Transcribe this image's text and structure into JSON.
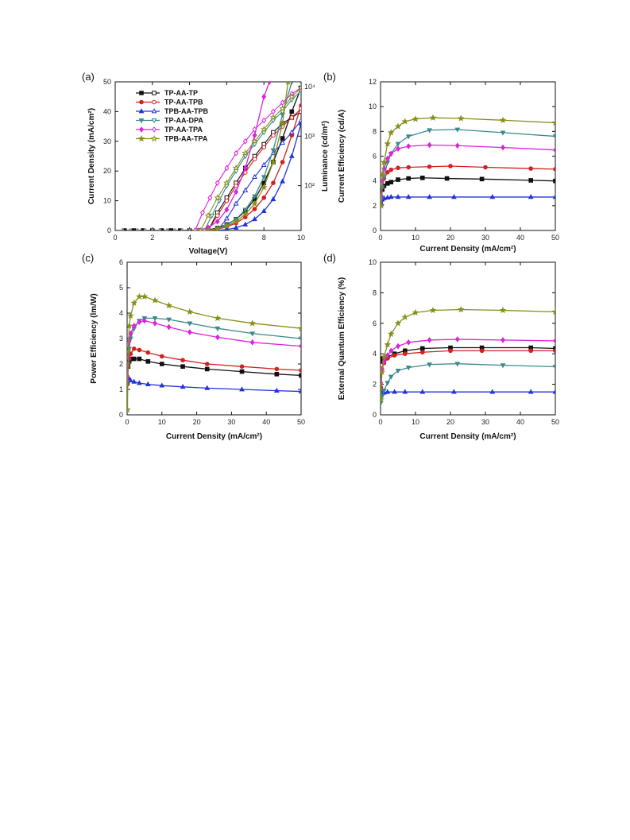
{
  "series_colors": {
    "TP-AA-TP": "#111111",
    "TP-AA-TPB": "#d42020",
    "TPB-AA-TPB": "#2233dd",
    "TP-AA-DPA": "#3a8a8a",
    "TP-AA-TPA": "#dd22dd",
    "TPB-AA-TPA": "#888f1a"
  },
  "chart_data": [
    {
      "id": "a",
      "panel_label": "(a)",
      "type": "line",
      "xlabel": "Voltage(V)",
      "ylabel": "Current Density (mA/cm²)",
      "ylabel_right": "Luminance (cd/m²)",
      "xlim": [
        0,
        10
      ],
      "ylim": [
        0,
        50
      ],
      "xticks": [
        0,
        2,
        4,
        6,
        8,
        10
      ],
      "yticks": [
        0,
        10,
        20,
        30,
        40,
        50
      ],
      "y2_log": true,
      "y2_ticks": [
        "10²",
        "10³",
        "10⁴"
      ],
      "legend": [
        "TP-AA-TP",
        "TP-AA-TPB",
        "TPB-AA-TPB",
        "TP-AA-DPA",
        "TP-AA-TPA",
        "TPB-AA-TPA"
      ],
      "legend_position": "top-left",
      "series": [
        {
          "name": "TP-AA-TP",
          "marker": "square",
          "x": [
            0.5,
            1,
            1.5,
            2,
            2.5,
            3,
            3.5,
            4,
            4.5,
            5,
            5.5,
            6,
            6.5,
            7,
            7.5,
            8,
            8.5,
            9,
            9.5,
            10
          ],
          "y": [
            0,
            0,
            0,
            0,
            0,
            0,
            0,
            0,
            0,
            0.2,
            0.8,
            2,
            3.8,
            6.5,
            10.5,
            16,
            23,
            31,
            40,
            48
          ],
          "lum_x": [
            5,
            5.5,
            6,
            6.5,
            7,
            7.5,
            8,
            8.5,
            9,
            9.5,
            10
          ],
          "lum_y": [
            0,
            6,
            11,
            16,
            21,
            25,
            29,
            33,
            36,
            38,
            40
          ]
        },
        {
          "name": "TP-AA-TPB",
          "marker": "circle",
          "x": [
            5,
            5.5,
            6,
            6.5,
            7,
            7.5,
            8,
            8.5,
            9,
            9.5,
            10
          ],
          "y": [
            0,
            0.4,
            1.2,
            2.5,
            4.5,
            7.2,
            11,
            16,
            23,
            32,
            42
          ],
          "lum_x": [
            5,
            5.5,
            6,
            6.5,
            7,
            7.5,
            8,
            8.5,
            9,
            9.5,
            10
          ],
          "lum_y": [
            0,
            5,
            10,
            15,
            19.5,
            24,
            28,
            32,
            35,
            38,
            41
          ]
        },
        {
          "name": "TPB-AA-TPB",
          "marker": "triangle",
          "x": [
            5.5,
            6,
            6.5,
            7,
            7.5,
            8,
            8.5,
            9,
            9.5,
            10
          ],
          "y": [
            0,
            0.3,
            0.9,
            2,
            3.8,
            6.5,
            10.5,
            16.5,
            25,
            36
          ],
          "lum_x": [
            5.5,
            6,
            6.5,
            7,
            7.5,
            8,
            8.5,
            9,
            9.5,
            10
          ],
          "lum_y": [
            0,
            4,
            9,
            13.5,
            18,
            22,
            26,
            29.5,
            33,
            37
          ]
        },
        {
          "name": "TP-AA-DPA",
          "marker": "triangle-down",
          "x": [
            5,
            5.5,
            6,
            6.5,
            7,
            7.5,
            8,
            8.5,
            9,
            9.5,
            10
          ],
          "y": [
            0,
            0.6,
            1.8,
            3.8,
            7,
            11.5,
            18,
            27,
            39,
            50,
            50
          ],
          "lum_x": [
            4.8,
            5.2,
            5.6,
            6,
            6.5,
            7,
            7.5,
            8,
            8.5,
            9,
            9.5,
            10
          ],
          "lum_y": [
            0,
            5,
            10,
            15,
            20,
            25,
            29,
            33,
            37,
            40,
            44,
            47
          ]
        },
        {
          "name": "TP-AA-TPA",
          "marker": "diamond",
          "x": [
            4.5,
            5,
            5.5,
            6,
            6.5,
            7,
            7.5,
            8,
            8.3
          ],
          "y": [
            0,
            1,
            3,
            7,
            13,
            21,
            32,
            45,
            50
          ],
          "lum_x": [
            4.3,
            4.7,
            5.1,
            5.5,
            6,
            6.5,
            7,
            7.5,
            8,
            8.5,
            9,
            9.5,
            10
          ],
          "lum_y": [
            0,
            6,
            11,
            16,
            21,
            26,
            30,
            34,
            37,
            40,
            43,
            46,
            48
          ]
        },
        {
          "name": "TPB-AA-TPA",
          "marker": "star",
          "x": [
            5,
            5.5,
            6,
            6.5,
            7,
            7.5,
            8,
            8.5,
            9,
            9.3
          ],
          "y": [
            0,
            0.5,
            1.5,
            3,
            5.5,
            9,
            14.5,
            23,
            36,
            50
          ],
          "lum_x": [
            4.6,
            5,
            5.5,
            6,
            6.5,
            7,
            7.5,
            8,
            8.5,
            9,
            9.5,
            10
          ],
          "lum_y": [
            0,
            5,
            11,
            16,
            21,
            26,
            30,
            34,
            38,
            41,
            45,
            48
          ]
        }
      ]
    },
    {
      "id": "b",
      "panel_label": "(b)",
      "type": "line",
      "xlabel": "Current Density (mA/cm²)",
      "ylabel": "Current Efficiency (cd/A)",
      "xlim": [
        0,
        50
      ],
      "ylim": [
        0,
        12
      ],
      "xticks": [
        0,
        10,
        20,
        30,
        40,
        50
      ],
      "yticks": [
        0,
        2,
        4,
        6,
        8,
        10,
        12
      ],
      "series": [
        {
          "name": "TP-AA-TP",
          "marker": "square",
          "x": [
            0.2,
            0.5,
            1,
            2,
            3,
            5,
            8,
            12,
            19,
            29,
            43,
            50
          ],
          "y": [
            2.5,
            3.3,
            3.6,
            3.8,
            3.9,
            4.1,
            4.2,
            4.25,
            4.2,
            4.15,
            4.05,
            4.0
          ]
        },
        {
          "name": "TP-AA-TPB",
          "marker": "circle",
          "x": [
            0.2,
            0.5,
            1,
            2,
            3,
            5,
            8,
            14,
            20,
            30,
            43,
            50
          ],
          "y": [
            2.4,
            3.5,
            4.2,
            4.7,
            4.9,
            5.05,
            5.1,
            5.15,
            5.2,
            5.1,
            5.0,
            4.95
          ]
        },
        {
          "name": "TPB-AA-TPB",
          "marker": "triangle",
          "x": [
            0.2,
            0.5,
            1,
            2,
            3,
            5,
            8,
            14,
            21,
            32,
            43,
            50
          ],
          "y": [
            2.2,
            2.5,
            2.6,
            2.65,
            2.7,
            2.7,
            2.7,
            2.7,
            2.7,
            2.7,
            2.7,
            2.7
          ]
        },
        {
          "name": "TP-AA-DPA",
          "marker": "triangle-down",
          "x": [
            0.2,
            0.5,
            1,
            2,
            3,
            5,
            8,
            14,
            22,
            35,
            50
          ],
          "y": [
            2.5,
            3.5,
            4.3,
            5.5,
            6.2,
            7.0,
            7.6,
            8.1,
            8.15,
            7.9,
            7.6
          ]
        },
        {
          "name": "TP-AA-TPA",
          "marker": "diamond",
          "x": [
            0.2,
            0.5,
            1,
            2,
            3,
            5,
            8,
            14,
            22,
            35,
            50
          ],
          "y": [
            2.8,
            4.0,
            5.0,
            5.8,
            6.2,
            6.6,
            6.8,
            6.9,
            6.85,
            6.7,
            6.5
          ]
        },
        {
          "name": "TPB-AA-TPA",
          "marker": "star",
          "x": [
            0.2,
            0.5,
            1,
            2,
            3,
            5,
            7,
            10,
            15,
            23,
            35,
            50
          ],
          "y": [
            2.0,
            4.5,
            5.5,
            7.0,
            7.9,
            8.4,
            8.8,
            9.0,
            9.1,
            9.05,
            8.9,
            8.7
          ]
        }
      ]
    },
    {
      "id": "c",
      "panel_label": "(c)",
      "type": "line",
      "xlabel": "Current Density (mA/cm²)",
      "ylabel": "Power Efficiency (lm/W)",
      "xlim": [
        0,
        50
      ],
      "ylim": [
        0,
        6
      ],
      "xticks": [
        0,
        10,
        20,
        30,
        40,
        50
      ],
      "yticks": [
        0,
        1,
        2,
        3,
        4,
        5,
        6
      ],
      "series": [
        {
          "name": "TP-AA-TP",
          "marker": "square",
          "x": [
            0.1,
            0.3,
            0.6,
            1,
            2,
            3.5,
            6,
            10,
            16,
            23,
            33,
            43,
            50
          ],
          "y": [
            1.3,
            1.9,
            2.1,
            2.2,
            2.2,
            2.2,
            2.1,
            2.0,
            1.9,
            1.8,
            1.7,
            1.6,
            1.55
          ]
        },
        {
          "name": "TP-AA-TPB",
          "marker": "circle",
          "x": [
            0.1,
            0.3,
            0.6,
            1,
            2,
            3.5,
            6,
            10,
            16,
            23,
            33,
            43,
            50
          ],
          "y": [
            1.2,
            1.9,
            2.2,
            2.4,
            2.6,
            2.55,
            2.45,
            2.3,
            2.15,
            2.0,
            1.9,
            1.8,
            1.75
          ]
        },
        {
          "name": "TPB-AA-TPB",
          "marker": "triangle",
          "x": [
            0.1,
            0.3,
            0.6,
            1,
            2,
            3.5,
            6,
            10,
            16,
            23,
            33,
            43,
            50
          ],
          "y": [
            1.5,
            1.5,
            1.4,
            1.35,
            1.3,
            1.25,
            1.2,
            1.15,
            1.1,
            1.05,
            1.0,
            0.95,
            0.92
          ]
        },
        {
          "name": "TP-AA-DPA",
          "marker": "triangle-down",
          "x": [
            0.1,
            0.3,
            0.6,
            1,
            2,
            3.5,
            5,
            8,
            12,
            18,
            26,
            36,
            50
          ],
          "y": [
            1.3,
            2.0,
            2.6,
            3.0,
            3.4,
            3.7,
            3.8,
            3.8,
            3.75,
            3.6,
            3.4,
            3.2,
            3.0
          ]
        },
        {
          "name": "TP-AA-TPA",
          "marker": "diamond",
          "x": [
            0.1,
            0.3,
            0.6,
            1,
            2,
            3.5,
            5,
            8,
            12,
            18,
            26,
            36,
            50
          ],
          "y": [
            1.5,
            2.3,
            2.9,
            3.2,
            3.5,
            3.65,
            3.7,
            3.6,
            3.45,
            3.25,
            3.05,
            2.85,
            2.7
          ]
        },
        {
          "name": "TPB-AA-TPA",
          "marker": "star",
          "x": [
            0.1,
            0.3,
            0.6,
            1,
            2,
            3.5,
            5,
            8,
            12,
            18,
            26,
            36,
            50
          ],
          "y": [
            0.2,
            2.5,
            3.5,
            3.9,
            4.4,
            4.65,
            4.65,
            4.5,
            4.3,
            4.05,
            3.8,
            3.6,
            3.4
          ]
        }
      ]
    },
    {
      "id": "d",
      "panel_label": "(d)",
      "type": "line",
      "xlabel": "Current Density (mA/cm²)",
      "ylabel": "External Quantum Efficiency (%)",
      "xlim": [
        0,
        50
      ],
      "ylim": [
        0,
        10
      ],
      "xticks": [
        0,
        10,
        20,
        30,
        40,
        50
      ],
      "yticks": [
        0,
        2,
        4,
        6,
        8,
        10
      ],
      "series": [
        {
          "name": "TP-AA-TP",
          "marker": "square",
          "x": [
            0.1,
            0.4,
            1,
            2,
            4,
            7,
            12,
            20,
            29,
            43,
            50
          ],
          "y": [
            3.7,
            3.5,
            3.6,
            3.8,
            4.0,
            4.2,
            4.35,
            4.4,
            4.4,
            4.4,
            4.35
          ]
        },
        {
          "name": "TP-AA-TPB",
          "marker": "circle",
          "x": [
            0.1,
            0.4,
            1,
            2,
            4,
            7,
            12,
            20,
            29,
            43,
            50
          ],
          "y": [
            1.8,
            3.0,
            3.4,
            3.7,
            3.9,
            4.0,
            4.1,
            4.2,
            4.2,
            4.2,
            4.2
          ]
        },
        {
          "name": "TPB-AA-TPB",
          "marker": "triangle",
          "x": [
            0.1,
            0.4,
            1,
            2,
            4,
            7,
            12,
            21,
            32,
            43,
            50
          ],
          "y": [
            1.4,
            1.45,
            1.45,
            1.5,
            1.5,
            1.5,
            1.5,
            1.5,
            1.5,
            1.5,
            1.5
          ]
        },
        {
          "name": "TP-AA-DPA",
          "marker": "triangle-down",
          "x": [
            0.1,
            0.4,
            1,
            2,
            3,
            5,
            8,
            14,
            22,
            35,
            50
          ],
          "y": [
            0.8,
            1.2,
            1.6,
            2.1,
            2.5,
            2.9,
            3.1,
            3.3,
            3.35,
            3.25,
            3.15
          ]
        },
        {
          "name": "TP-AA-TPA",
          "marker": "diamond",
          "x": [
            0.1,
            0.4,
            1,
            2,
            3,
            5,
            8,
            14,
            22,
            35,
            50
          ],
          "y": [
            2.1,
            3.0,
            3.5,
            3.9,
            4.2,
            4.5,
            4.75,
            4.9,
            4.95,
            4.9,
            4.85
          ]
        },
        {
          "name": "TPB-AA-TPA",
          "marker": "star",
          "x": [
            0.1,
            0.4,
            1,
            2,
            3,
            5,
            7,
            10,
            15,
            23,
            35,
            50
          ],
          "y": [
            1.0,
            2.8,
            3.8,
            4.6,
            5.3,
            6.0,
            6.4,
            6.7,
            6.85,
            6.9,
            6.85,
            6.75
          ]
        }
      ]
    }
  ]
}
